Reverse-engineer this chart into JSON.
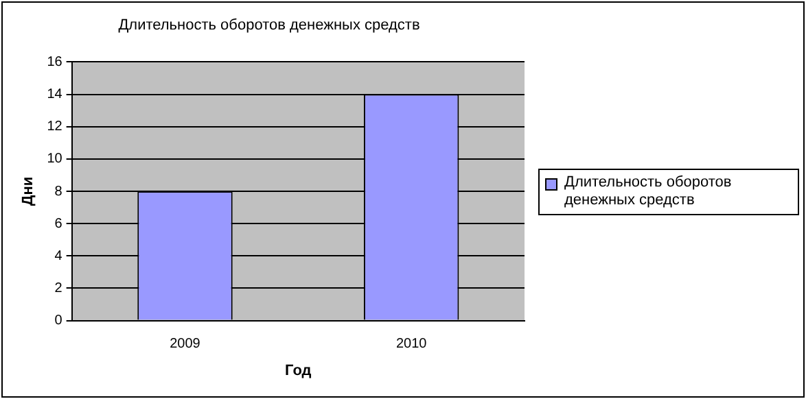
{
  "chart_data": {
    "type": "bar",
    "title": "Длительность оборотов денежных средств",
    "xlabel": "Год",
    "ylabel": "Дни",
    "categories": [
      "2009",
      "2010"
    ],
    "series": [
      {
        "name": "Длительность оборотов денежных средств",
        "color": "#9999ff",
        "values": [
          8,
          14
        ]
      }
    ],
    "ylim": [
      0,
      16
    ],
    "yticks": [
      0,
      2,
      4,
      6,
      8,
      10,
      12,
      14,
      16
    ],
    "grid": "y",
    "legend": "right"
  }
}
